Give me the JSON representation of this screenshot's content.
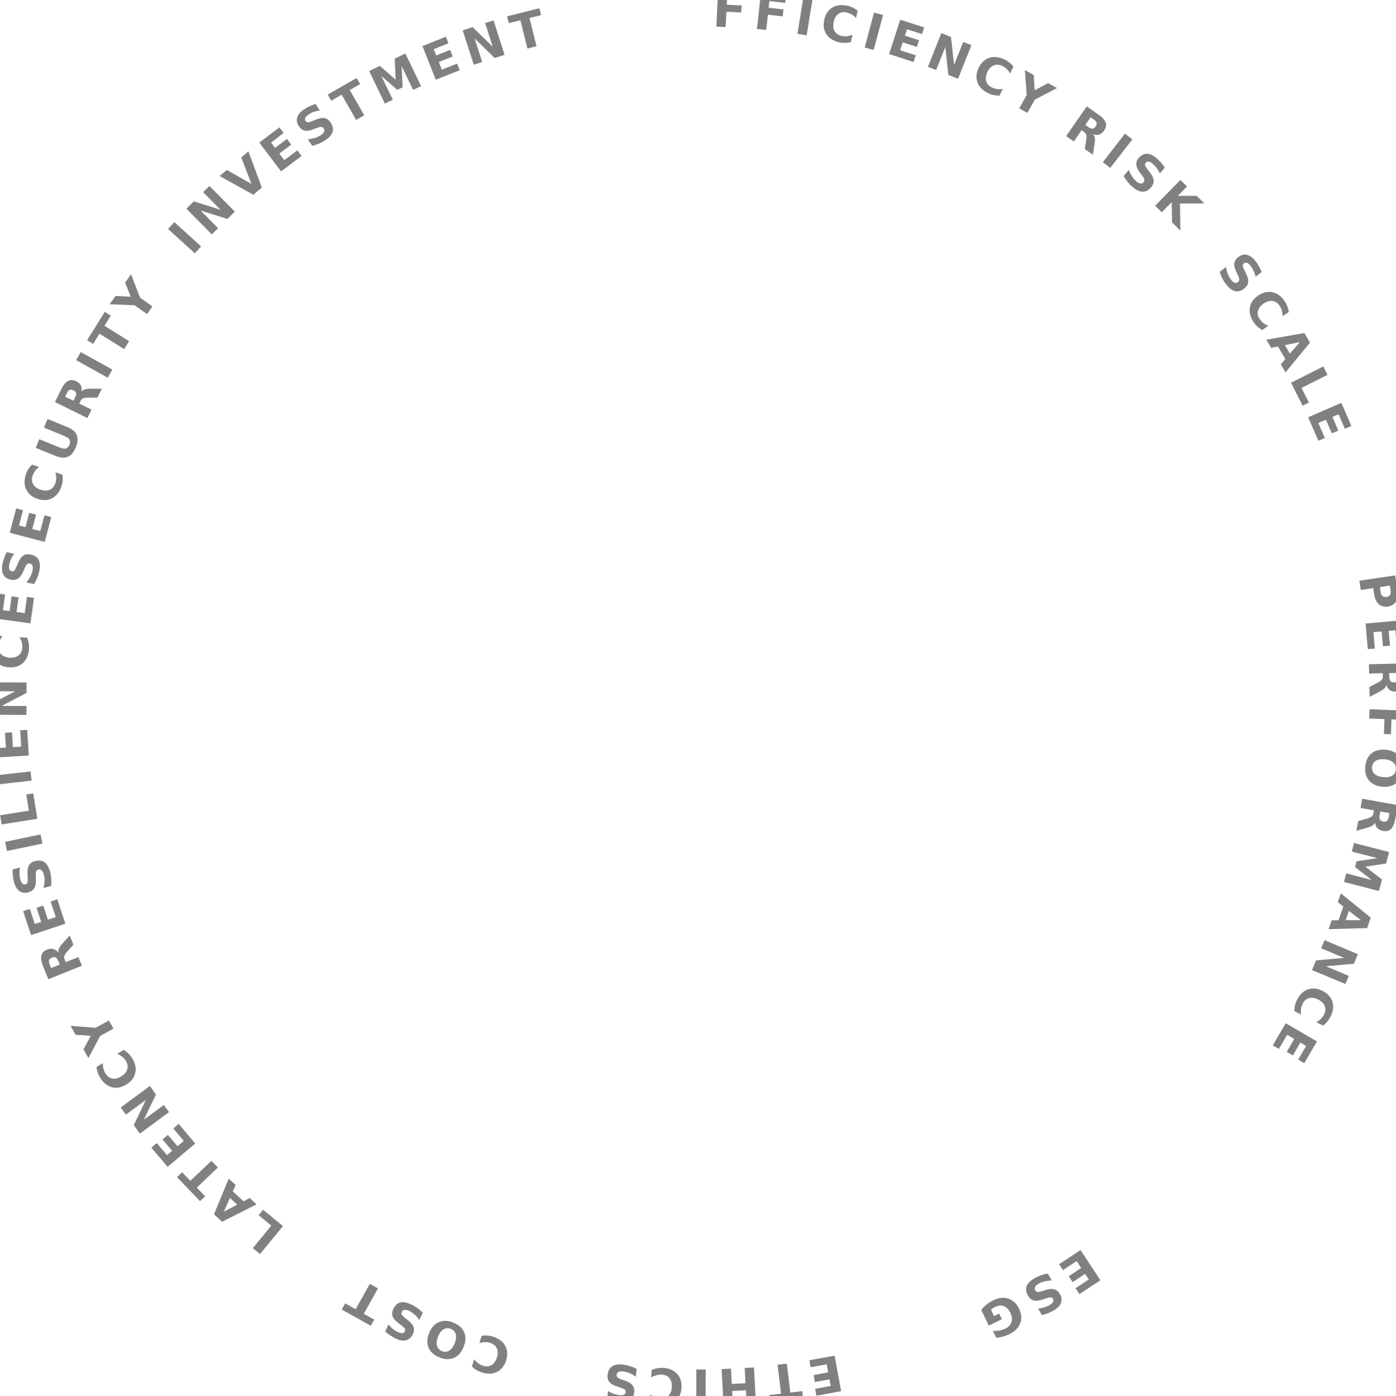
{
  "ring": {
    "text_color": "#808080",
    "background_color": "#ffffff",
    "words": [
      {
        "id": "efficiency",
        "label": "EFFICIENCY"
      },
      {
        "id": "risk",
        "label": "RISK"
      },
      {
        "id": "scale",
        "label": "SCALE"
      },
      {
        "id": "performance",
        "label": "PERFORMANCE"
      },
      {
        "id": "esg",
        "label": "ESG"
      },
      {
        "id": "ethics",
        "label": "ETHICS"
      },
      {
        "id": "cost",
        "label": "COST"
      },
      {
        "id": "latency",
        "label": "LATENCY"
      },
      {
        "id": "resilience",
        "label": "RESILIENCE"
      },
      {
        "id": "security",
        "label": "SECURITY"
      },
      {
        "id": "investment",
        "label": "INVESTMENT"
      }
    ]
  }
}
